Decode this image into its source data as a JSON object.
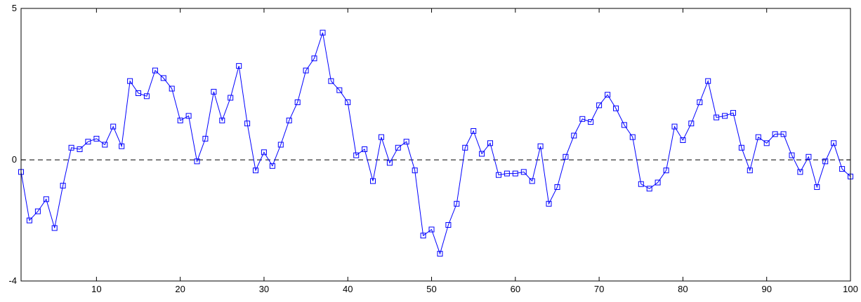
{
  "chart_data": {
    "type": "line",
    "title": "",
    "xlabel": "",
    "ylabel": "",
    "xlim": [
      1,
      100
    ],
    "ylim": [
      -4,
      5
    ],
    "xticks": [
      10,
      20,
      30,
      40,
      50,
      60,
      70,
      80,
      90,
      100
    ],
    "yticks": [
      -4,
      0,
      5
    ],
    "grid": false,
    "legend": false,
    "reference_line": {
      "y": 0,
      "style": "dashed",
      "color": "#000000"
    },
    "series": [
      {
        "color": "#0000ff",
        "marker": "square",
        "x": [
          1,
          2,
          3,
          4,
          5,
          6,
          7,
          8,
          9,
          10,
          11,
          12,
          13,
          14,
          15,
          16,
          17,
          18,
          19,
          20,
          21,
          22,
          23,
          24,
          25,
          26,
          27,
          28,
          29,
          30,
          31,
          32,
          33,
          34,
          35,
          36,
          37,
          38,
          39,
          40,
          41,
          42,
          43,
          44,
          45,
          46,
          47,
          48,
          49,
          50,
          51,
          52,
          53,
          54,
          55,
          56,
          57,
          58,
          59,
          60,
          61,
          62,
          63,
          64,
          65,
          66,
          67,
          68,
          69,
          70,
          71,
          72,
          73,
          74,
          75,
          76,
          77,
          78,
          79,
          80,
          81,
          82,
          83,
          84,
          85,
          86,
          87,
          88,
          89,
          90,
          91,
          92,
          93,
          94,
          95,
          96,
          97,
          98,
          99,
          100
        ],
        "values": [
          -0.4,
          -2.0,
          -1.7,
          -1.3,
          -2.25,
          -0.85,
          0.4,
          0.35,
          0.6,
          0.7,
          0.5,
          1.1,
          0.45,
          2.6,
          2.2,
          2.1,
          2.95,
          2.7,
          2.35,
          1.3,
          1.45,
          -0.05,
          0.7,
          2.25,
          1.3,
          2.05,
          3.1,
          1.2,
          -0.35,
          0.25,
          -0.2,
          0.5,
          1.3,
          1.9,
          2.95,
          3.35,
          4.2,
          2.6,
          2.3,
          1.9,
          0.15,
          0.35,
          -0.7,
          0.75,
          -0.1,
          0.4,
          0.6,
          -0.35,
          -2.5,
          -2.3,
          -3.1,
          -2.15,
          -1.45,
          0.4,
          0.95,
          0.2,
          0.55,
          -0.5,
          -0.45,
          -0.45,
          -0.4,
          -0.7,
          0.45,
          -1.45,
          -0.9,
          0.1,
          0.8,
          1.35,
          1.25,
          1.8,
          2.15,
          1.7,
          1.15,
          0.75,
          -0.8,
          -0.95,
          -0.75,
          -0.35,
          1.1,
          0.65,
          1.2,
          1.9,
          2.6,
          1.4,
          1.45,
          1.55,
          0.4,
          -0.35,
          0.75,
          0.55,
          0.85,
          0.85,
          0.15,
          -0.4,
          0.1,
          -0.9,
          -0.05,
          0.55,
          -0.3,
          -0.55
        ]
      }
    ]
  }
}
